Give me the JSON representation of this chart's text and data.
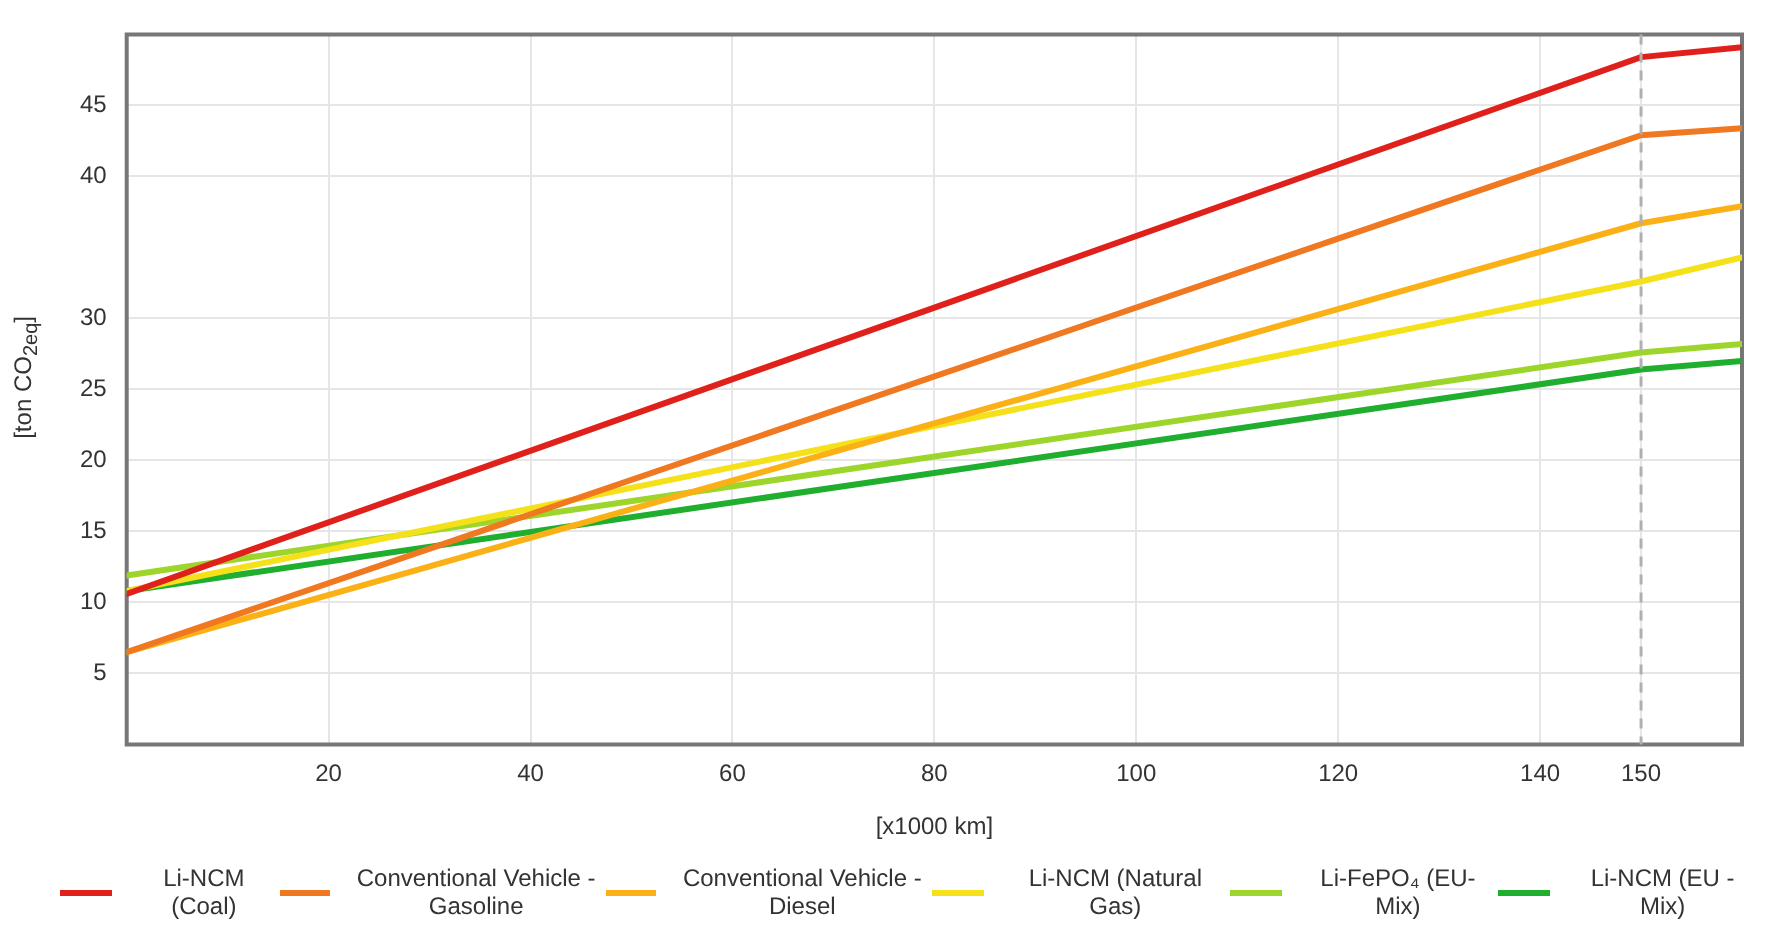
{
  "chart_data": {
    "type": "line",
    "xlabel": "[x1000 km]",
    "ylabel": "[ton CO$_{2eq}$]",
    "xlim": [
      0,
      160
    ],
    "xticks": [
      20,
      40,
      60,
      80,
      100,
      120,
      140,
      150
    ],
    "ylim": [
      0,
      50
    ],
    "yticks": [
      5,
      10,
      15,
      20,
      25,
      30,
      40,
      45
    ],
    "grid": true,
    "legend": "bottom",
    "marker": "none",
    "line_style": "solid",
    "ref_lines": [
      {
        "axis": "x",
        "value": 150,
        "color": "#b0b0b0",
        "line_style": "dashed"
      }
    ],
    "series": [
      {
        "name": "Li-NCM (Coal)",
        "color": "#e0201b",
        "x": [
          0,
          150,
          160
        ],
        "values": [
          10.6,
          48.4,
          49.1
        ]
      },
      {
        "name": "Conventional Vehicle - Gasoline",
        "color": "#f07820",
        "x": [
          0,
          150,
          160
        ],
        "values": [
          6.5,
          42.9,
          43.4
        ]
      },
      {
        "name": "Conventional Vehicle - Diesel",
        "color": "#fbb116",
        "x": [
          0,
          150,
          160
        ],
        "values": [
          6.5,
          36.7,
          37.9
        ]
      },
      {
        "name": "Li-NCM (Natural Gas)",
        "color": "#f5e11a",
        "x": [
          0,
          150,
          160
        ],
        "values": [
          10.8,
          32.6,
          34.3
        ]
      },
      {
        "name": "Li-FePO₄ (EU-Mix)",
        "color": "#9ed52a",
        "x": [
          0,
          150,
          160
        ],
        "values": [
          11.9,
          27.6,
          28.2
        ]
      },
      {
        "name": "Li-NCM (EU - Mix)",
        "color": "#1fae2e",
        "x": [
          0,
          150,
          160
        ],
        "values": [
          10.8,
          26.4,
          27.0
        ]
      }
    ]
  }
}
